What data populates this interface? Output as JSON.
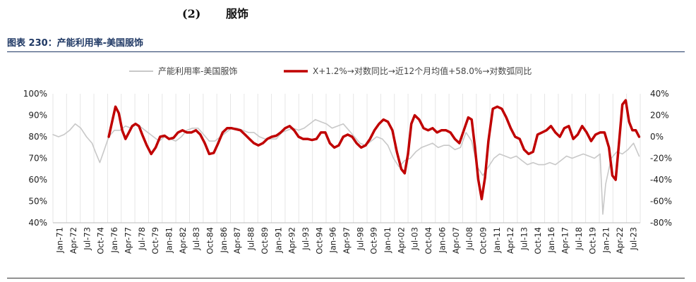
{
  "header": {
    "number": "(2)",
    "title": "服饰"
  },
  "figure": {
    "title": "图表 230：产能利用率-美国服饰"
  },
  "colors": {
    "series_gray": "#c8c8c8",
    "series_red": "#c00000",
    "title_blue": "#1f3864"
  },
  "chart_data": {
    "type": "line",
    "x_tick_labels": [
      "Jan-71",
      "Apr-72",
      "Jul-73",
      "Oct-74",
      "Jan-76",
      "Apr-77",
      "Jul-78",
      "Oct-79",
      "Jan-81",
      "Apr-82",
      "Jul-83",
      "Oct-84",
      "Jan-86",
      "Apr-87",
      "Jul-88",
      "Oct-89",
      "Jan-91",
      "Apr-92",
      "Jul-93",
      "Oct-94",
      "Jan-96",
      "Apr-97",
      "Jul-98",
      "Oct-99",
      "Jan-01",
      "Apr-02",
      "Jul-03",
      "Oct-04",
      "Jan-06",
      "Apr-07",
      "Jul-08",
      "Oct-09",
      "Jan-11",
      "Apr-12",
      "Jul-13",
      "Oct-14",
      "Jan-16",
      "Apr-17",
      "Jul-18",
      "Oct-19",
      "Jan-21",
      "Apr-22",
      "Jul-23"
    ],
    "y_left": {
      "ticks": [
        "40%",
        "50%",
        "60%",
        "70%",
        "80%",
        "90%",
        "100%"
      ],
      "min": 40,
      "max": 100
    },
    "y_right": {
      "ticks": [
        "-80%",
        "-60%",
        "-40%",
        "-20%",
        "0%",
        "20%",
        "40%"
      ],
      "min": -80,
      "max": 40
    },
    "x_range": [
      1971.0,
      2023.6
    ],
    "legend_position": "top",
    "series": [
      {
        "name": "产能利用率-美国服饰",
        "axis": "left",
        "points": [
          [
            1971.0,
            81
          ],
          [
            1971.5,
            80
          ],
          [
            1972.0,
            81
          ],
          [
            1972.5,
            83
          ],
          [
            1973.0,
            86
          ],
          [
            1973.5,
            84
          ],
          [
            1974.0,
            80
          ],
          [
            1974.5,
            77
          ],
          [
            1974.8,
            73
          ],
          [
            1975.2,
            68
          ],
          [
            1975.6,
            74
          ],
          [
            1976.0,
            80
          ],
          [
            1976.5,
            83
          ],
          [
            1977.0,
            83
          ],
          [
            1977.5,
            85
          ],
          [
            1978.0,
            84
          ],
          [
            1978.5,
            86
          ],
          [
            1979.0,
            84
          ],
          [
            1979.5,
            82
          ],
          [
            1980.0,
            80
          ],
          [
            1980.5,
            78
          ],
          [
            1981.0,
            80
          ],
          [
            1981.5,
            79
          ],
          [
            1982.0,
            78
          ],
          [
            1982.5,
            80
          ],
          [
            1983.0,
            83
          ],
          [
            1983.5,
            84
          ],
          [
            1984.0,
            84
          ],
          [
            1984.5,
            81
          ],
          [
            1985.0,
            78
          ],
          [
            1985.5,
            78
          ],
          [
            1986.0,
            80
          ],
          [
            1986.5,
            82
          ],
          [
            1987.0,
            84
          ],
          [
            1987.5,
            84
          ],
          [
            1988.0,
            83
          ],
          [
            1988.5,
            82
          ],
          [
            1989.0,
            82
          ],
          [
            1989.5,
            80
          ],
          [
            1990.0,
            79
          ],
          [
            1990.5,
            79
          ],
          [
            1991.0,
            79
          ],
          [
            1991.5,
            82
          ],
          [
            1992.0,
            83
          ],
          [
            1992.5,
            84
          ],
          [
            1993.0,
            83
          ],
          [
            1993.5,
            84
          ],
          [
            1994.0,
            86
          ],
          [
            1994.5,
            88
          ],
          [
            1995.0,
            87
          ],
          [
            1995.5,
            86
          ],
          [
            1996.0,
            84
          ],
          [
            1996.5,
            85
          ],
          [
            1997.0,
            86
          ],
          [
            1997.5,
            83
          ],
          [
            1998.0,
            80
          ],
          [
            1998.5,
            77
          ],
          [
            1999.0,
            76
          ],
          [
            1999.5,
            78
          ],
          [
            2000.0,
            80
          ],
          [
            2000.5,
            79
          ],
          [
            2001.0,
            76
          ],
          [
            2001.5,
            70
          ],
          [
            2002.0,
            66
          ],
          [
            2002.5,
            69
          ],
          [
            2003.0,
            70
          ],
          [
            2003.5,
            73
          ],
          [
            2004.0,
            75
          ],
          [
            2004.5,
            76
          ],
          [
            2005.0,
            77
          ],
          [
            2005.5,
            75
          ],
          [
            2006.0,
            76
          ],
          [
            2006.5,
            76
          ],
          [
            2007.0,
            74
          ],
          [
            2007.5,
            75
          ],
          [
            2008.0,
            82
          ],
          [
            2008.5,
            78
          ],
          [
            2009.0,
            66
          ],
          [
            2009.5,
            62
          ],
          [
            2010.0,
            66
          ],
          [
            2010.5,
            70
          ],
          [
            2011.0,
            72
          ],
          [
            2011.5,
            71
          ],
          [
            2012.0,
            70
          ],
          [
            2012.5,
            71
          ],
          [
            2013.0,
            69
          ],
          [
            2013.5,
            67
          ],
          [
            2014.0,
            68
          ],
          [
            2014.5,
            67
          ],
          [
            2015.0,
            67
          ],
          [
            2015.5,
            68
          ],
          [
            2016.0,
            67
          ],
          [
            2016.5,
            69
          ],
          [
            2017.0,
            71
          ],
          [
            2017.5,
            70
          ],
          [
            2018.0,
            71
          ],
          [
            2018.5,
            72
          ],
          [
            2019.0,
            71
          ],
          [
            2019.5,
            70
          ],
          [
            2020.0,
            72
          ],
          [
            2020.25,
            44
          ],
          [
            2020.5,
            58
          ],
          [
            2021.0,
            70
          ],
          [
            2021.5,
            73
          ],
          [
            2022.0,
            72
          ],
          [
            2022.5,
            74
          ],
          [
            2023.0,
            77
          ],
          [
            2023.5,
            71
          ]
        ]
      },
      {
        "name": "X+1.2%→对数同比→近12个月均值+58.0%→对数弧同比",
        "axis": "right",
        "points": [
          [
            1976.0,
            0
          ],
          [
            1976.3,
            14
          ],
          [
            1976.6,
            28
          ],
          [
            1976.9,
            22
          ],
          [
            1977.2,
            6
          ],
          [
            1977.5,
            -2
          ],
          [
            1977.8,
            4
          ],
          [
            1978.1,
            10
          ],
          [
            1978.4,
            12
          ],
          [
            1978.7,
            10
          ],
          [
            1979.0,
            2
          ],
          [
            1979.4,
            -8
          ],
          [
            1979.8,
            -16
          ],
          [
            1980.2,
            -10
          ],
          [
            1980.6,
            0
          ],
          [
            1981.0,
            1
          ],
          [
            1981.4,
            -2
          ],
          [
            1981.8,
            -1
          ],
          [
            1982.2,
            4
          ],
          [
            1982.6,
            6
          ],
          [
            1983.0,
            4
          ],
          [
            1983.4,
            4
          ],
          [
            1983.8,
            6
          ],
          [
            1984.2,
            2
          ],
          [
            1984.6,
            -6
          ],
          [
            1985.0,
            -16
          ],
          [
            1985.4,
            -15
          ],
          [
            1985.8,
            -6
          ],
          [
            1986.2,
            4
          ],
          [
            1986.6,
            8
          ],
          [
            1987.0,
            8
          ],
          [
            1987.4,
            7
          ],
          [
            1987.8,
            6
          ],
          [
            1988.2,
            2
          ],
          [
            1988.6,
            -2
          ],
          [
            1989.0,
            -6
          ],
          [
            1989.4,
            -8
          ],
          [
            1989.8,
            -6
          ],
          [
            1990.2,
            -2
          ],
          [
            1990.6,
            0
          ],
          [
            1991.0,
            1
          ],
          [
            1991.4,
            4
          ],
          [
            1991.8,
            8
          ],
          [
            1992.2,
            10
          ],
          [
            1992.6,
            6
          ],
          [
            1993.0,
            0
          ],
          [
            1993.4,
            -2
          ],
          [
            1993.8,
            -2
          ],
          [
            1994.2,
            -3
          ],
          [
            1994.6,
            -2
          ],
          [
            1995.0,
            4
          ],
          [
            1995.4,
            4
          ],
          [
            1995.8,
            -6
          ],
          [
            1996.2,
            -10
          ],
          [
            1996.6,
            -8
          ],
          [
            1997.0,
            0
          ],
          [
            1997.4,
            2
          ],
          [
            1997.8,
            0
          ],
          [
            1998.2,
            -6
          ],
          [
            1998.6,
            -10
          ],
          [
            1999.0,
            -8
          ],
          [
            1999.4,
            -2
          ],
          [
            1999.8,
            6
          ],
          [
            2000.2,
            12
          ],
          [
            2000.6,
            16
          ],
          [
            2001.0,
            14
          ],
          [
            2001.4,
            6
          ],
          [
            2001.8,
            -14
          ],
          [
            2002.2,
            -30
          ],
          [
            2002.5,
            -34
          ],
          [
            2002.8,
            -16
          ],
          [
            2003.1,
            12
          ],
          [
            2003.4,
            20
          ],
          [
            2003.8,
            16
          ],
          [
            2004.2,
            8
          ],
          [
            2004.6,
            6
          ],
          [
            2005.0,
            8
          ],
          [
            2005.4,
            4
          ],
          [
            2005.8,
            6
          ],
          [
            2006.2,
            6
          ],
          [
            2006.6,
            4
          ],
          [
            2007.0,
            -2
          ],
          [
            2007.4,
            -6
          ],
          [
            2007.8,
            6
          ],
          [
            2008.2,
            18
          ],
          [
            2008.5,
            16
          ],
          [
            2008.8,
            -10
          ],
          [
            2009.1,
            -40
          ],
          [
            2009.4,
            -58
          ],
          [
            2009.7,
            -38
          ],
          [
            2010.0,
            -4
          ],
          [
            2010.4,
            26
          ],
          [
            2010.8,
            28
          ],
          [
            2011.2,
            26
          ],
          [
            2011.6,
            18
          ],
          [
            2012.0,
            8
          ],
          [
            2012.4,
            0
          ],
          [
            2012.8,
            -2
          ],
          [
            2013.2,
            -12
          ],
          [
            2013.6,
            -16
          ],
          [
            2014.0,
            -14
          ],
          [
            2014.4,
            2
          ],
          [
            2014.8,
            4
          ],
          [
            2015.2,
            6
          ],
          [
            2015.6,
            10
          ],
          [
            2016.0,
            4
          ],
          [
            2016.4,
            0
          ],
          [
            2016.8,
            8
          ],
          [
            2017.2,
            10
          ],
          [
            2017.6,
            -2
          ],
          [
            2018.0,
            2
          ],
          [
            2018.4,
            10
          ],
          [
            2018.8,
            4
          ],
          [
            2019.2,
            -4
          ],
          [
            2019.6,
            2
          ],
          [
            2020.0,
            4
          ],
          [
            2020.4,
            4
          ],
          [
            2020.8,
            -10
          ],
          [
            2021.1,
            -36
          ],
          [
            2021.4,
            -40
          ],
          [
            2021.7,
            -6
          ],
          [
            2022.0,
            30
          ],
          [
            2022.3,
            34
          ],
          [
            2022.6,
            14
          ],
          [
            2022.9,
            6
          ],
          [
            2023.2,
            6
          ],
          [
            2023.5,
            0
          ]
        ]
      }
    ]
  }
}
